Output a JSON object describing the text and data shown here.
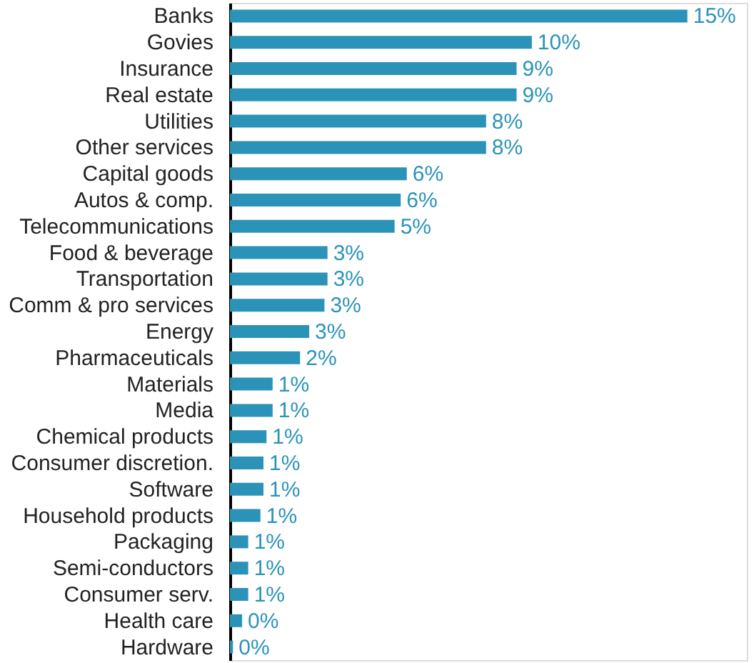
{
  "chart_data": {
    "type": "bar",
    "orientation": "horizontal",
    "categories": [
      "Banks",
      "Govies",
      "Insurance",
      "Real estate",
      "Utilities",
      "Other services",
      "Capital goods",
      "Autos & comp.",
      "Telecommunications",
      "Food & beverage",
      "Transportation",
      "Comm & pro services",
      "Energy",
      "Pharmaceuticals",
      "Materials",
      "Media",
      "Chemical products",
      "Consumer discretion.",
      "Software",
      "Household products",
      "Packaging",
      "Semi-conductors",
      "Consumer serv.",
      "Health care",
      "Hardware"
    ],
    "values": [
      15,
      9.9,
      9.4,
      9.4,
      8.4,
      8.4,
      5.8,
      5.6,
      5.4,
      3.2,
      3.2,
      3.1,
      2.6,
      2.3,
      1.4,
      1.4,
      1.2,
      1.1,
      1.1,
      1.0,
      0.6,
      0.6,
      0.6,
      0.4,
      0.1
    ],
    "value_labels": [
      "15%",
      "10%",
      "9%",
      "9%",
      "8%",
      "8%",
      "6%",
      "6%",
      "5%",
      "3%",
      "3%",
      "3%",
      "3%",
      "2%",
      "1%",
      "1%",
      "1%",
      "1%",
      "1%",
      "1%",
      "1%",
      "1%",
      "1%",
      "0%",
      "0%"
    ],
    "color": "#2b93b8"
  }
}
